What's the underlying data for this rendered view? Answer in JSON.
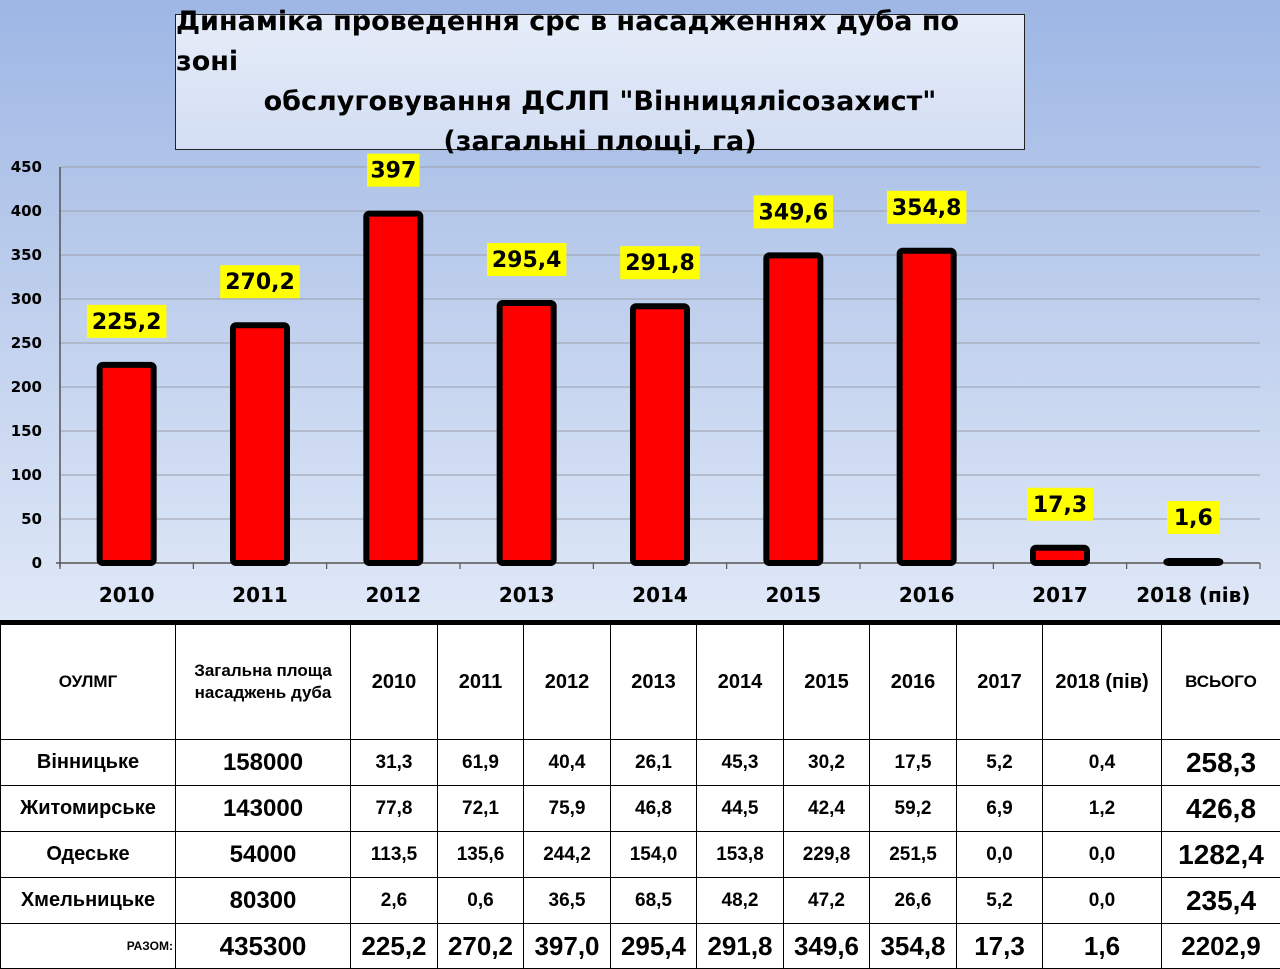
{
  "title": {
    "line1": "Динаміка проведення срс в насадженнях дуба по зоні",
    "line2": "обслуговування ДСЛП \"Вінницялісозахист\"",
    "line3": "(загальні площі, га)"
  },
  "colors": {
    "bar_fill": "#ff0000",
    "bar_stroke": "#000000",
    "label_bg": "#ffff00"
  },
  "chart_data": {
    "type": "bar",
    "categories": [
      "2010",
      "2011",
      "2012",
      "2013",
      "2014",
      "2015",
      "2016",
      "2017",
      "2018 (пів)"
    ],
    "values": [
      225.2,
      270.2,
      397,
      295.4,
      291.8,
      349.6,
      354.8,
      17.3,
      1.6
    ],
    "value_labels": [
      "225,2",
      "270,2",
      "397",
      "295,4",
      "291,8",
      "349,6",
      "354,8",
      "17,3",
      "1,6"
    ],
    "yticks": [
      0,
      50,
      100,
      150,
      200,
      250,
      300,
      350,
      400,
      450
    ],
    "ylim": [
      0,
      450
    ],
    "grid": true,
    "legend": "none"
  },
  "table": {
    "headers": [
      "ОУЛМГ",
      "Загальна площа насаджень дуба",
      "2010",
      "2011",
      "2012",
      "2013",
      "2014",
      "2015",
      "2016",
      "2017",
      "2018 (пів)",
      "ВСЬОГО"
    ],
    "rows": [
      {
        "name": "Вінницьке",
        "area": "158000",
        "vals": [
          "31,3",
          "61,9",
          "40,4",
          "26,1",
          "45,3",
          "30,2",
          "17,5",
          "5,2",
          "0,4"
        ],
        "total": "258,3"
      },
      {
        "name": "Житомирське",
        "area": "143000",
        "vals": [
          "77,8",
          "72,1",
          "75,9",
          "46,8",
          "44,5",
          "42,4",
          "59,2",
          "6,9",
          "1,2"
        ],
        "total": "426,8"
      },
      {
        "name": "Одеське",
        "area": "54000",
        "vals": [
          "113,5",
          "135,6",
          "244,2",
          "154,0",
          "153,8",
          "229,8",
          "251,5",
          "0,0",
          "0,0"
        ],
        "total": "1282,4"
      },
      {
        "name": "Хмельницьке",
        "area": "80300",
        "vals": [
          "2,6",
          "0,6",
          "36,5",
          "68,5",
          "48,2",
          "47,2",
          "26,6",
          "5,2",
          "0,0"
        ],
        "total": "235,4"
      }
    ],
    "summary": {
      "label": "РАЗОМ:",
      "area": "435300",
      "vals": [
        "225,2",
        "270,2",
        "397,0",
        "295,4",
        "291,8",
        "349,6",
        "354,8",
        "17,3",
        "1,6"
      ],
      "total": "2202,9"
    }
  }
}
